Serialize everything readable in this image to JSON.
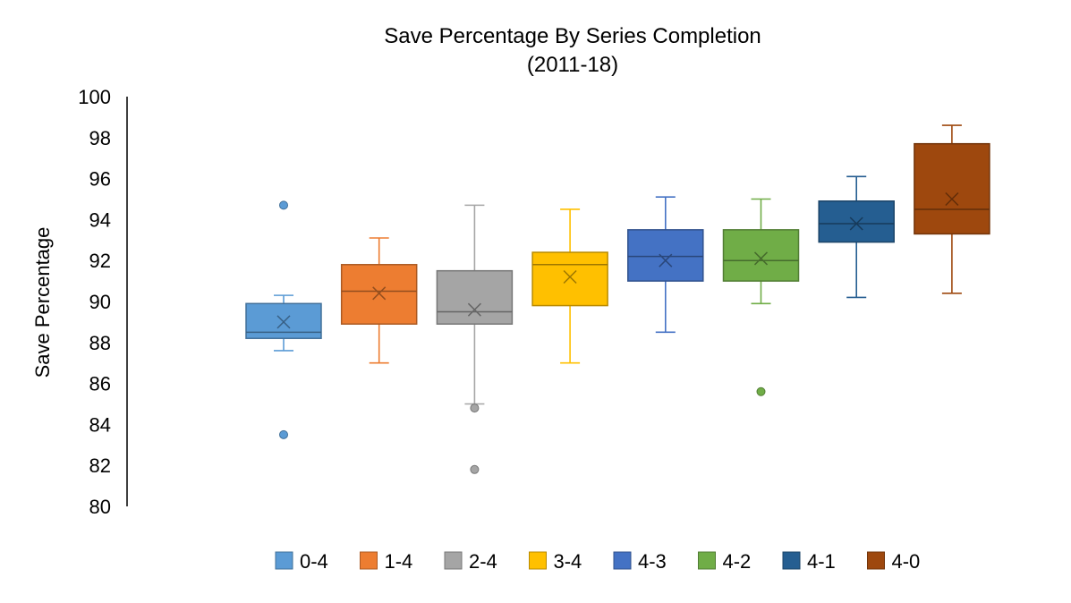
{
  "chart_data": {
    "type": "box",
    "title": "Save Percentage By Series Completion",
    "subtitle": "(2011-18)",
    "xlabel": "",
    "ylabel": "Save Percentage",
    "ylim": [
      80,
      100
    ],
    "yticks": [
      80,
      82,
      84,
      86,
      88,
      90,
      92,
      94,
      96,
      98,
      100
    ],
    "grid": false,
    "legend_position": "bottom",
    "series": [
      {
        "name": "0-4",
        "color": "#5B9BD5",
        "min": 87.6,
        "q1": 88.2,
        "median": 88.5,
        "q3": 89.9,
        "max": 90.3,
        "mean": 89.0,
        "outliers": [
          94.7,
          83.5
        ]
      },
      {
        "name": "1-4",
        "color": "#ED7D31",
        "min": 87.0,
        "q1": 88.9,
        "median": 90.5,
        "q3": 91.8,
        "max": 93.1,
        "mean": 90.4,
        "outliers": []
      },
      {
        "name": "2-4",
        "color": "#A5A5A5",
        "min": 85.0,
        "q1": 88.9,
        "median": 89.5,
        "q3": 91.5,
        "max": 94.7,
        "mean": 89.6,
        "outliers": [
          84.8,
          81.8
        ]
      },
      {
        "name": "3-4",
        "color": "#FFC000",
        "min": 87.0,
        "q1": 89.8,
        "median": 91.8,
        "q3": 92.4,
        "max": 94.5,
        "mean": 91.2,
        "outliers": []
      },
      {
        "name": "4-3",
        "color": "#4472C4",
        "min": 88.5,
        "q1": 91.0,
        "median": 92.2,
        "q3": 93.5,
        "max": 95.1,
        "mean": 92.0,
        "outliers": []
      },
      {
        "name": "4-2",
        "color": "#70AD47",
        "min": 89.9,
        "q1": 91.0,
        "median": 92.0,
        "q3": 93.5,
        "max": 95.0,
        "mean": 92.1,
        "outliers": [
          85.6
        ]
      },
      {
        "name": "4-1",
        "color": "#255E91",
        "min": 90.2,
        "q1": 92.9,
        "median": 93.8,
        "q3": 94.9,
        "max": 96.1,
        "mean": 93.8,
        "outliers": []
      },
      {
        "name": "4-0",
        "color": "#9E480E",
        "min": 90.4,
        "q1": 93.3,
        "median": 94.5,
        "q3": 97.7,
        "max": 98.6,
        "mean": 95.0,
        "outliers": []
      }
    ]
  }
}
